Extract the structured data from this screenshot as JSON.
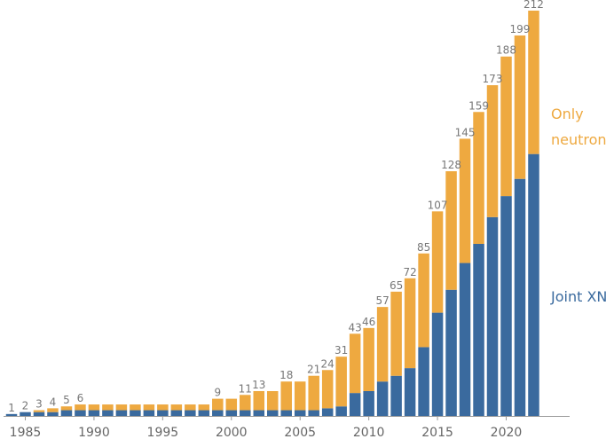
{
  "chart_data": {
    "type": "bar",
    "stacked": true,
    "title": "",
    "xlabel": "",
    "ylabel": "",
    "x": [
      1984,
      1985,
      1986,
      1987,
      1988,
      1989,
      1990,
      1991,
      1992,
      1993,
      1994,
      1995,
      1996,
      1997,
      1998,
      1999,
      2000,
      2001,
      2002,
      2003,
      2004,
      2005,
      2006,
      2007,
      2008,
      2009,
      2010,
      2011,
      2012,
      2013,
      2014,
      2015,
      2016,
      2017,
      2018,
      2019,
      2020,
      2021,
      2022
    ],
    "totals": [
      1,
      2,
      3,
      4,
      5,
      6,
      6,
      6,
      6,
      6,
      6,
      6,
      6,
      6,
      6,
      9,
      9,
      11,
      13,
      13,
      18,
      18,
      21,
      24,
      31,
      43,
      46,
      57,
      65,
      72,
      85,
      107,
      128,
      145,
      159,
      173,
      188,
      199,
      212
    ],
    "label_years": [
      1984,
      1985,
      1986,
      1987,
      1988,
      1989,
      1999,
      2001,
      2002,
      2004,
      2006,
      2007,
      2008,
      2009,
      2010,
      2011,
      2012,
      2013,
      2014,
      2015,
      2016,
      2017,
      2018,
      2019,
      2020,
      2021,
      2022
    ],
    "series": [
      {
        "name": "Joint XN",
        "color": "#3a6a9e",
        "values": [
          1,
          2,
          2,
          2,
          3,
          3,
          3,
          3,
          3,
          3,
          3,
          3,
          3,
          3,
          3,
          3,
          3,
          3,
          3,
          3,
          3,
          3,
          3,
          4,
          5,
          12,
          13,
          18,
          21,
          25,
          36,
          54,
          66,
          80,
          90,
          104,
          115,
          124,
          137
        ]
      },
      {
        "name": "Only neutron",
        "color": "#eea940",
        "values": [
          0,
          0,
          1,
          2,
          2,
          3,
          3,
          3,
          3,
          3,
          3,
          3,
          3,
          3,
          3,
          6,
          6,
          8,
          10,
          10,
          15,
          15,
          18,
          20,
          26,
          31,
          33,
          39,
          44,
          47,
          49,
          53,
          62,
          65,
          69,
          69,
          73,
          75,
          75
        ]
      }
    ],
    "x_ticks": [
      "1985",
      "1990",
      "1995",
      "2000",
      "2005",
      "2010",
      "2015",
      "2020"
    ],
    "y_max": 212,
    "legend": {
      "only_neutron": [
        "Only",
        "neutron"
      ],
      "joint_xn": "Joint XN",
      "placement": "right"
    },
    "colors": {
      "joint": "#3a6a9e",
      "only": "#eea940",
      "axis": "#999999",
      "label": "#777777"
    }
  }
}
